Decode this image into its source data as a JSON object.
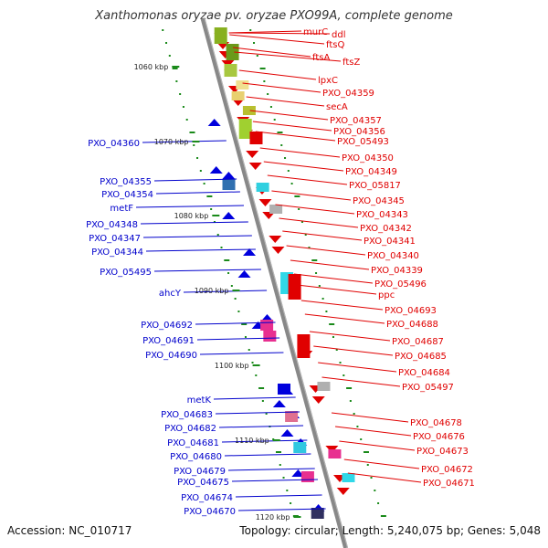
{
  "title": "Xanthomonas oryzae pv. oryzae PXO99A, complete genome",
  "footer": {
    "accession": "Accession: NC_010717",
    "stats": "Topology: circular; Length: 5,240,075 bp; Genes: 5,048"
  },
  "kbp_ticks": [
    "1060 kbp",
    "1070 kbp",
    "1080 kbp",
    "1090 kbp",
    "1100 kbp",
    "1110 kbp",
    "1120 kbp"
  ],
  "right_labels": [
    "murC",
    "ddl",
    "ftsQ",
    "ftsA",
    "ftsZ",
    "lpxC",
    "PXO_04359",
    "secA",
    "PXO_04357",
    "PXO_04356",
    "PXO_05493",
    "PXO_04350",
    "PXO_04349",
    "PXO_05817",
    "PXO_04345",
    "PXO_04343",
    "PXO_04342",
    "PXO_04341",
    "PXO_04340",
    "PXO_04339",
    "PXO_05496",
    "ppc",
    "PXO_04693",
    "PXO_04688",
    "PXO_04687",
    "PXO_04685",
    "PXO_04684",
    "PXO_05497",
    "PXO_04678",
    "PXO_04676",
    "PXO_04673",
    "PXO_04672",
    "PXO_04671"
  ],
  "left_labels": [
    "PXO_04360",
    "PXO_04355",
    "PXO_04354",
    "metF",
    "PXO_04348",
    "PXO_04347",
    "PXO_04344",
    "PXO_05495",
    "ahcY",
    "PXO_04692",
    "PXO_04691",
    "PXO_04690",
    "metK",
    "PXO_04683",
    "PXO_04682",
    "PXO_04681",
    "PXO_04680",
    "PXO_04679",
    "PXO_04675",
    "PXO_04674",
    "PXO_04670"
  ],
  "colors": {
    "forward_gene": "#e00000",
    "reverse_gene": "#0000dd",
    "right_label": "#e00000",
    "left_label": "#0000cc",
    "backbone": "#888888",
    "tick": "#1a8a1a"
  }
}
